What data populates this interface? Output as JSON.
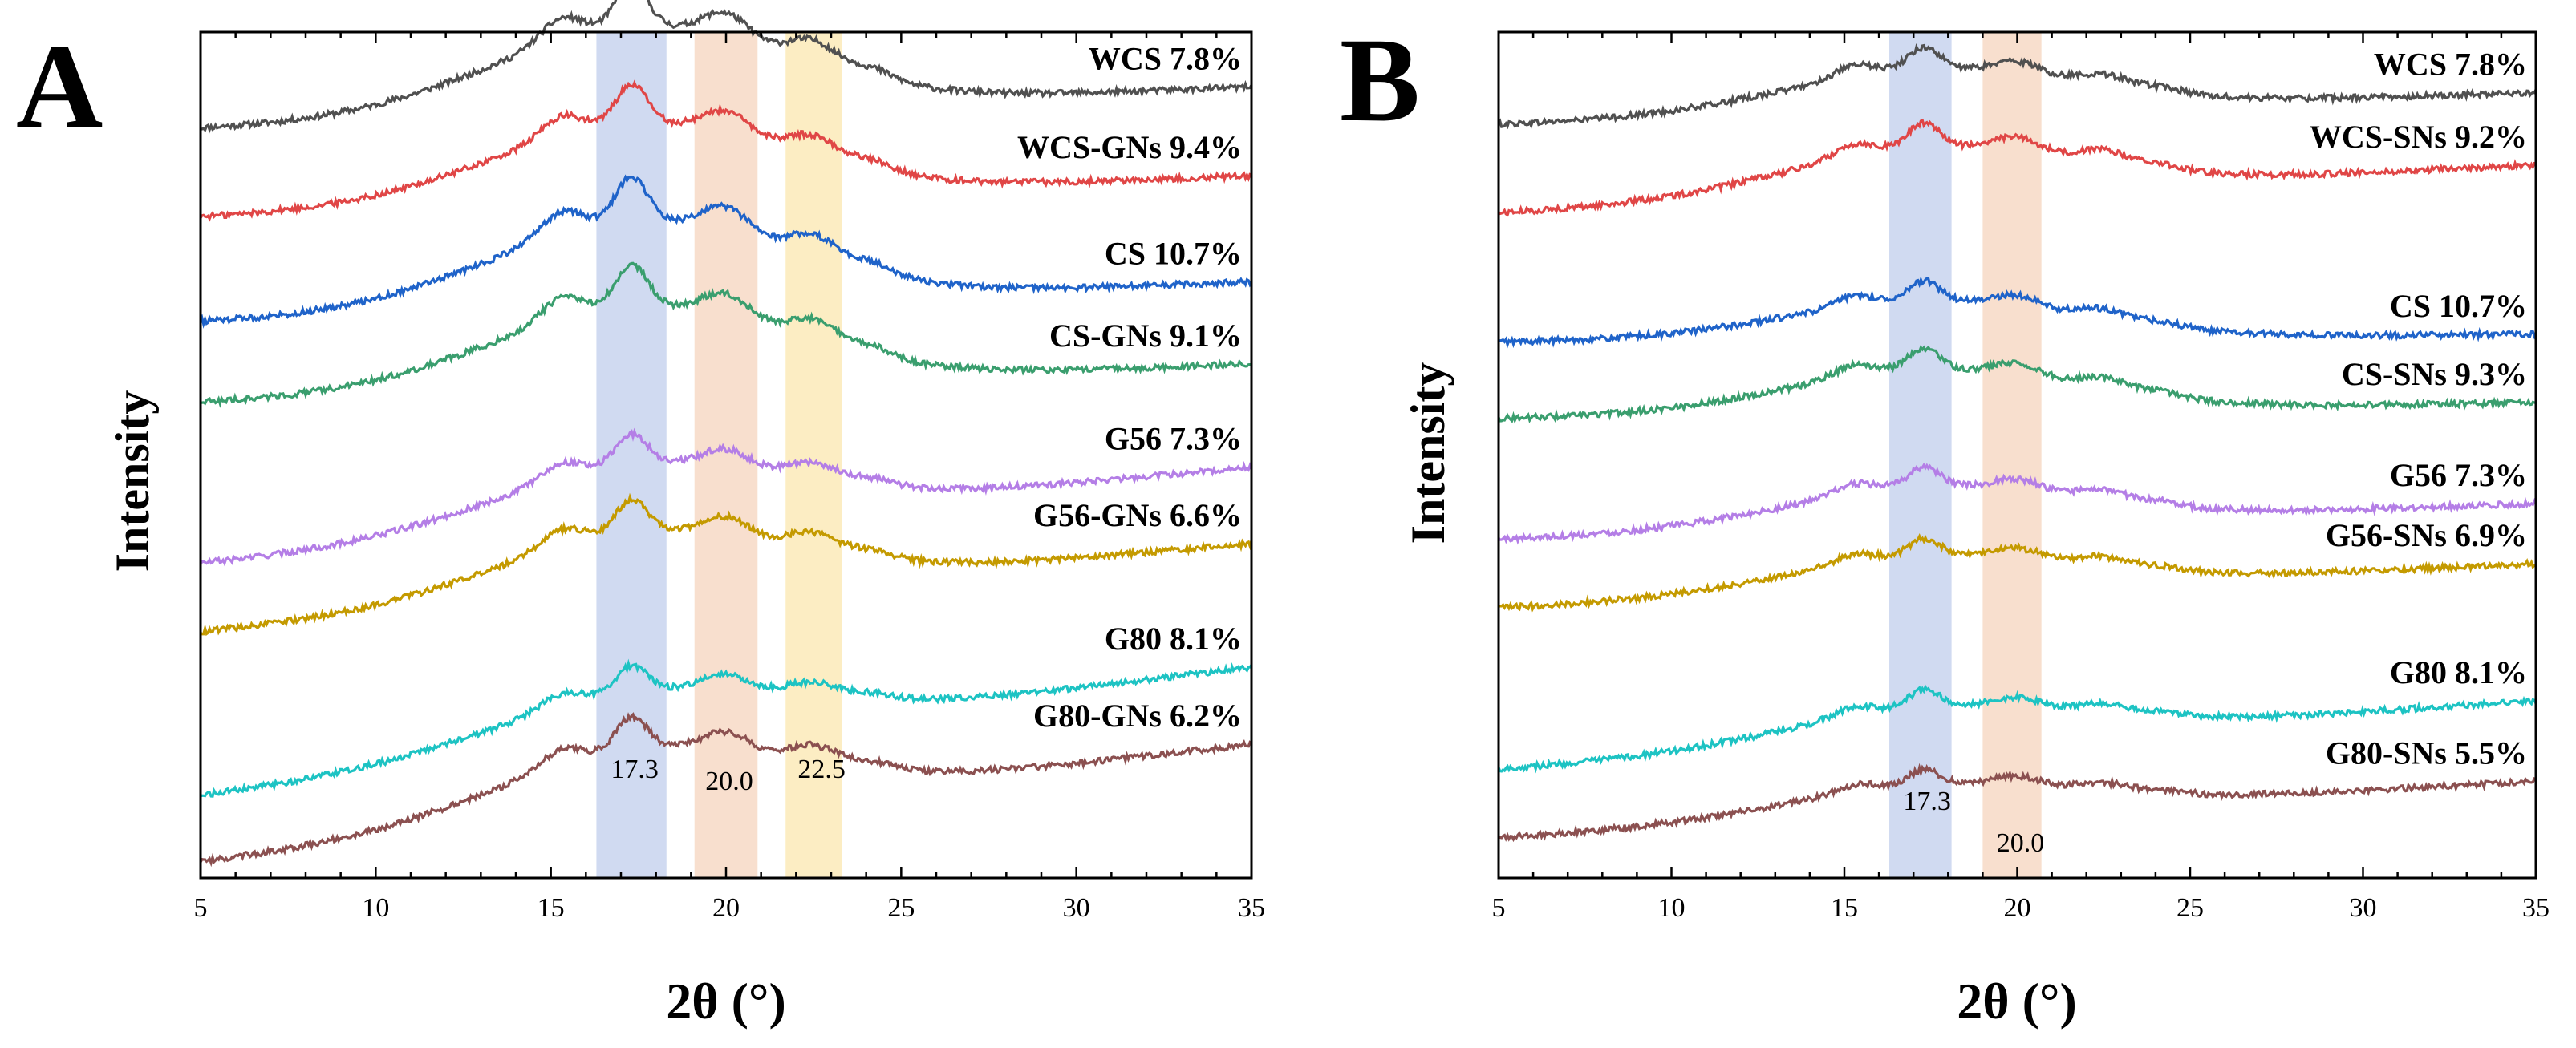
{
  "chart_data": [
    {
      "type": "line",
      "panel": "A",
      "xlabel": "2θ (°)",
      "ylabel": "Intensity",
      "xlim": [
        5,
        35
      ],
      "ylim": [
        0,
        10.5
      ],
      "xticks": [
        5,
        10,
        15,
        20,
        25,
        30,
        35
      ],
      "bands": [
        {
          "center": 17.3,
          "range": [
            16.3,
            18.3
          ],
          "label": "17.3",
          "color": "#c8d4ef"
        },
        {
          "center": 20.0,
          "range": [
            19.1,
            20.9
          ],
          "label": "20.0",
          "color": "#f7d9c6"
        },
        {
          "center": 22.5,
          "range": [
            21.7,
            23.3
          ],
          "label": "22.5",
          "color": "#fbeab9"
        }
      ],
      "series": [
        {
          "name": "WCS 7.8%",
          "color": "#505050",
          "baseline": 9.3,
          "endbase": 9.82,
          "amp": 1.0
        },
        {
          "name": "WCS-GNs 9.4%",
          "color": "#e04646",
          "baseline": 8.2,
          "endbase": 8.72,
          "amp": 0.9
        },
        {
          "name": "CS 10.7%",
          "color": "#1f63c9",
          "baseline": 6.9,
          "endbase": 7.4,
          "amp": 1.0
        },
        {
          "name": "CS-GNs 9.1%",
          "color": "#3a9e6e",
          "baseline": 5.9,
          "endbase": 6.38,
          "amp": 0.95
        },
        {
          "name": "G56 7.3%",
          "color": "#b47ee6",
          "baseline": 3.9,
          "endbase": 5.1,
          "amp": 0.7
        },
        {
          "name": "G56-GNs 6.6%",
          "color": "#c49a00",
          "baseline": 3.05,
          "endbase": 4.15,
          "amp": 0.75
        },
        {
          "name": "G80 8.1%",
          "color": "#1dc3c3",
          "baseline": 1.02,
          "endbase": 2.62,
          "amp": 0.6
        },
        {
          "name": "G80-GNs 6.2%",
          "color": "#8b5050",
          "baseline": 0.2,
          "endbase": 1.66,
          "amp": 0.75
        }
      ]
    },
    {
      "type": "line",
      "panel": "B",
      "xlabel": "2θ (°)",
      "ylabel": "Intensity",
      "xlim": [
        5,
        35
      ],
      "ylim": [
        0,
        10.5
      ],
      "xticks": [
        5,
        10,
        15,
        20,
        25,
        30,
        35
      ],
      "bands": [
        {
          "center": 17.3,
          "range": [
            16.3,
            18.1
          ],
          "label": "17.3",
          "color": "#c8d4ef"
        },
        {
          "center": 20.0,
          "range": [
            19.0,
            20.7
          ],
          "label": "20.0",
          "color": "#f7d9c6"
        }
      ],
      "series": [
        {
          "name": "WCS 7.8%",
          "color": "#505050",
          "baseline": 9.35,
          "endbase": 9.75,
          "amp": 0.5
        },
        {
          "name": "WCS-SNs 9.2%",
          "color": "#e04646",
          "baseline": 8.25,
          "endbase": 8.85,
          "amp": 0.55
        },
        {
          "name": "CS 10.7%",
          "color": "#1f63c9",
          "baseline": 6.65,
          "endbase": 6.75,
          "amp": 0.45
        },
        {
          "name": "CS-SNs 9.3%",
          "color": "#3a9e6e",
          "baseline": 5.7,
          "endbase": 5.9,
          "amp": 0.5
        },
        {
          "name": "G56 7.3%",
          "color": "#b47ee6",
          "baseline": 4.2,
          "endbase": 4.65,
          "amp": 0.45
        },
        {
          "name": "G56-SNs 6.9%",
          "color": "#c49a00",
          "baseline": 3.35,
          "endbase": 3.9,
          "amp": 0.4
        },
        {
          "name": "G80 8.1%",
          "color": "#1dc3c3",
          "baseline": 1.35,
          "endbase": 2.2,
          "amp": 0.4
        },
        {
          "name": "G80-SNs 5.5%",
          "color": "#8b5050",
          "baseline": 0.5,
          "endbase": 1.2,
          "amp": 0.35
        }
      ]
    }
  ]
}
